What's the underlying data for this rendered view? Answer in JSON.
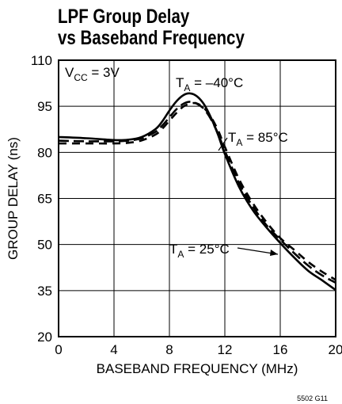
{
  "chart_data": {
    "type": "line",
    "title_line1": "LPF Group Delay",
    "title_line2": "vs Baseband Frequency",
    "xlabel": "BASEBAND FREQUENCY (MHz)",
    "ylabel": "GROUP DELAY (ns)",
    "xlim": [
      0,
      20
    ],
    "ylim": [
      20,
      110
    ],
    "xticks": [
      "0",
      "4",
      "8",
      "12",
      "16",
      "20"
    ],
    "yticks": [
      "20",
      "35",
      "50",
      "65",
      "80",
      "95",
      "110"
    ],
    "x_tick_values": [
      0,
      4,
      8,
      12,
      16,
      20
    ],
    "y_tick_values": [
      20,
      35,
      50,
      65,
      80,
      95,
      110
    ],
    "grid": true,
    "condition_label": "VCC = 3V",
    "series": [
      {
        "name": "TA = –40°C",
        "style": "solid",
        "x": [
          0,
          2,
          4,
          5,
          6,
          7,
          7.5,
          8,
          8.5,
          9,
          9.5,
          10,
          10.5,
          11,
          11.5,
          12,
          13,
          14,
          15,
          16,
          17,
          18,
          19,
          20
        ],
        "y": [
          85,
          84.6,
          84,
          84.1,
          85,
          87.6,
          90.2,
          93.6,
          96.6,
          98.6,
          99.2,
          98.2,
          95.6,
          91.3,
          85.8,
          79.5,
          69,
          61.3,
          55.6,
          50.5,
          45.8,
          41.5,
          38.4,
          35.2
        ]
      },
      {
        "name": "TA = 25°C",
        "style": "dashed",
        "x": [
          0,
          2,
          4,
          5,
          6,
          7,
          7.5,
          8,
          8.5,
          9,
          9.5,
          10,
          10.5,
          11,
          11.5,
          12,
          13,
          14,
          15,
          16,
          17,
          18,
          19,
          20
        ],
        "y": [
          83.8,
          83.6,
          83.6,
          83.8,
          84.6,
          86.7,
          88.8,
          91.4,
          94,
          95.8,
          96.5,
          95.8,
          94.1,
          90.8,
          86.2,
          80.5,
          70.2,
          62.5,
          56.3,
          51.6,
          47.2,
          43.2,
          40,
          37.6
        ]
      },
      {
        "name": "TA = 85°C",
        "style": "dashed",
        "x": [
          0,
          2,
          4,
          5,
          6,
          7,
          7.5,
          8,
          8.5,
          9,
          9.5,
          10,
          10.5,
          11,
          11.5,
          12,
          13,
          14,
          15,
          16,
          17,
          18,
          19,
          20
        ],
        "y": [
          82.9,
          82.9,
          82.9,
          83.1,
          83.9,
          85.8,
          87.8,
          90.3,
          92.8,
          94.9,
          95.9,
          95.9,
          94.4,
          91.5,
          87.3,
          81.8,
          71.5,
          63.6,
          57.3,
          52.1,
          48.3,
          44.4,
          41.2,
          38.5
        ]
      }
    ],
    "annotations": {
      "vcc": {
        "main": "V",
        "sub": "CC",
        "rest": " = 3V"
      },
      "t_minus40": {
        "main": "T",
        "sub": "A",
        "rest": " = –40°C"
      },
      "t_85": {
        "main": "T",
        "sub": "A",
        "rest": " = 85°C"
      },
      "t_25": {
        "main": "T",
        "sub": "A",
        "rest": " = 25°C"
      }
    }
  },
  "figure_id": "5502 G11"
}
